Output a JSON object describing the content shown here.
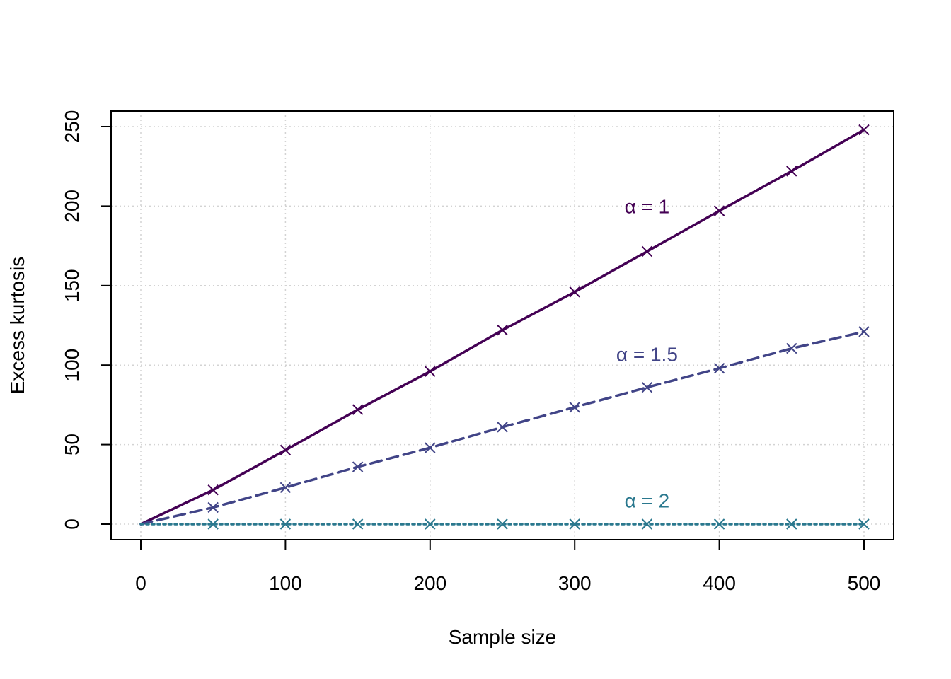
{
  "chart_data": {
    "type": "line",
    "title": "",
    "xlabel": "Sample size",
    "ylabel": "Excess kurtosis",
    "xlim": [
      0,
      500
    ],
    "ylim": [
      0,
      250
    ],
    "xticks": [
      0,
      100,
      200,
      300,
      400,
      500
    ],
    "yticks": [
      0,
      50,
      100,
      150,
      200,
      250
    ],
    "xtick_labels": [
      "0",
      "100",
      "200",
      "300",
      "400",
      "500"
    ],
    "ytick_labels": [
      "0",
      "50",
      "100",
      "150",
      "200",
      "250"
    ],
    "grid": true,
    "legend": "none",
    "x": [
      0,
      50,
      100,
      150,
      200,
      250,
      300,
      350,
      400,
      450,
      500
    ],
    "series": [
      {
        "name": "α = 1",
        "color": "#440154",
        "linestyle": "solid",
        "marker": "x",
        "label_at": [
          350,
          200
        ],
        "values": [
          0,
          21.5,
          46.5,
          72,
          96,
          122,
          146,
          171.5,
          197,
          222,
          248
        ]
      },
      {
        "name": "α = 1.5",
        "color": "#414487",
        "linestyle": "dashed",
        "marker": "x",
        "label_at": [
          350,
          107
        ],
        "values": [
          0,
          10.5,
          23,
          36,
          48,
          61,
          73.5,
          86,
          98,
          110.5,
          121
        ]
      },
      {
        "name": "α = 2",
        "color": "#2a788e",
        "linestyle": "dotted",
        "marker": "x",
        "label_at": [
          350,
          15
        ],
        "values": [
          0,
          0,
          0,
          0,
          0,
          0,
          0,
          0,
          0,
          0,
          0
        ]
      }
    ]
  }
}
